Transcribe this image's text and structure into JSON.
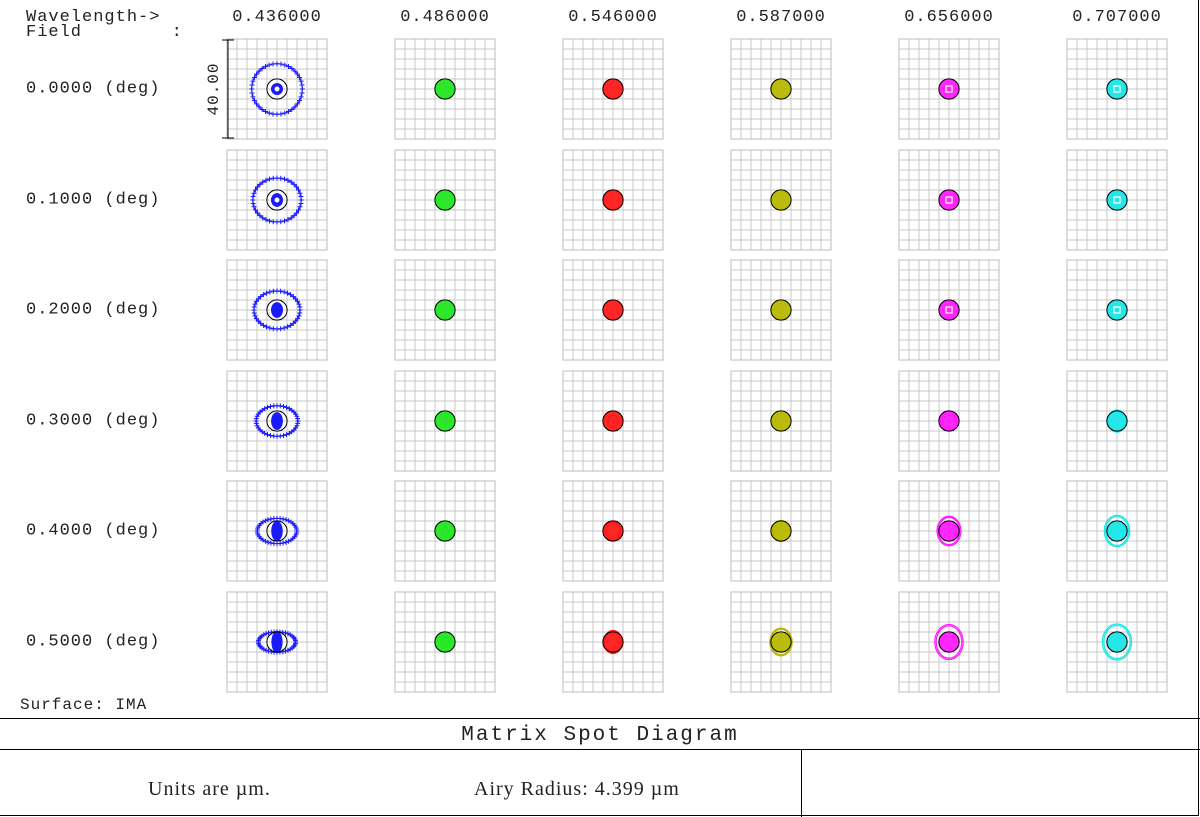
{
  "header": {
    "wavelength_label": "Wavelength->",
    "field_label": "Field        :"
  },
  "surface_label": "Surface: IMA",
  "title": "Matrix Spot Diagram",
  "footer": {
    "units": "Units are µm.",
    "airy": "Airy Radius: 4.399 µm"
  },
  "chart_data": {
    "type": "scatter",
    "title": "Matrix Spot Diagram",
    "wavelengths": [
      "0.436000",
      "0.486000",
      "0.546000",
      "0.587000",
      "0.656000",
      "0.707000"
    ],
    "fields": [
      "0.0000 (deg)",
      "0.1000 (deg)",
      "0.2000 (deg)",
      "0.3000 (deg)",
      "0.4000 (deg)",
      "0.5000 (deg)"
    ],
    "scale_bar": "40.00",
    "scale_um": 40.0,
    "units": "µm",
    "airy_radius_um": 4.399,
    "grid": true,
    "colors": [
      "#1a1aff",
      "#22e622",
      "#ff1a1a",
      "#b8b800",
      "#ff1aff",
      "#1ae6e6"
    ],
    "spot_rms_radius_um": [
      [
        11.5,
        1.6,
        1.8,
        2.2,
        2.6,
        3.3
      ],
      [
        11.0,
        1.6,
        1.9,
        2.2,
        2.6,
        3.4
      ],
      [
        10.5,
        1.5,
        2.0,
        2.5,
        2.8,
        3.6
      ],
      [
        9.5,
        1.6,
        2.6,
        3.2,
        4.2,
        4.8
      ],
      [
        9.0,
        1.8,
        4.0,
        4.6,
        6.4,
        6.8
      ],
      [
        8.5,
        2.2,
        5.0,
        6.0,
        7.6,
        7.8
      ]
    ]
  }
}
